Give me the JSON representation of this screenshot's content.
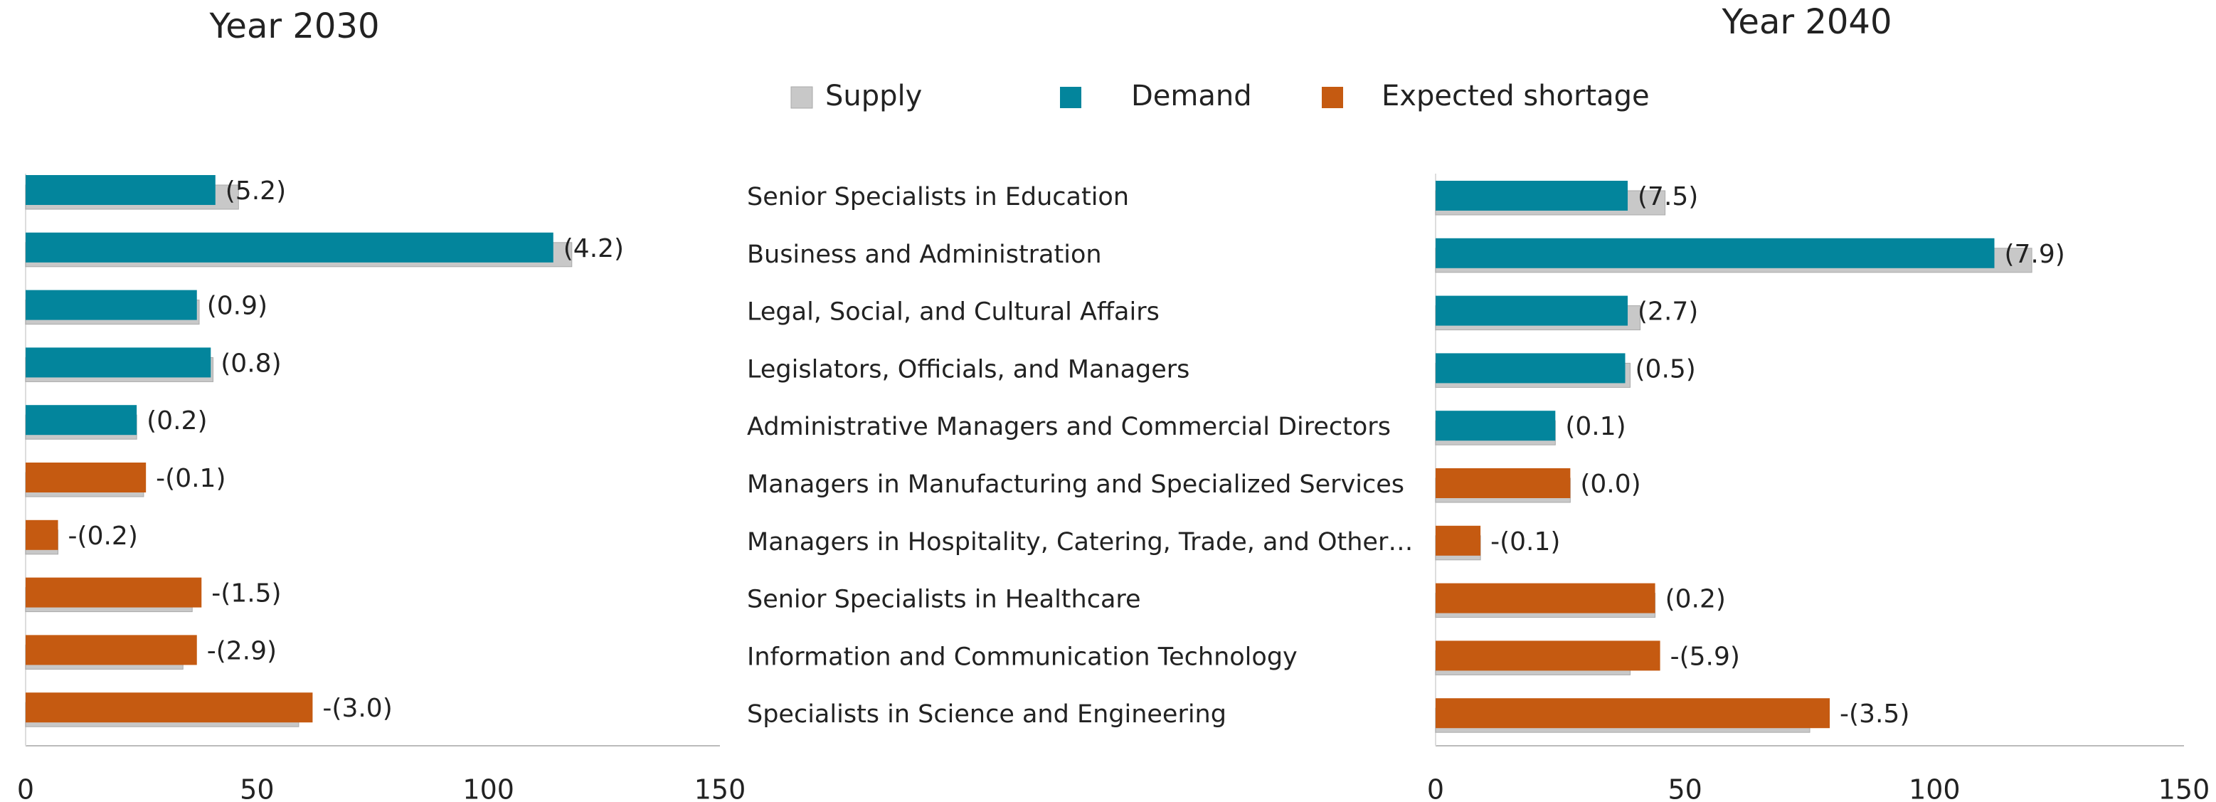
{
  "chart_data": [
    {
      "type": "bar",
      "orientation": "horizontal",
      "title": "Year 2030",
      "categories": [
        "Senior Specialists in Education",
        "Business and Administration",
        "Legal, Social, and Cultural Affairs",
        "Legislators, Officials, and Managers",
        "Administrative Managers and Commercial Directors",
        "Managers in Manufacturing and Specialized Services",
        "Managers in Hospitality, Catering, Trade, and Other…",
        "Senior Specialists in Healthcare",
        "Information and Communication Technology",
        "Specialists in Science and Engineering"
      ],
      "series": [
        {
          "name": "Supply",
          "color": "#c8c8c8",
          "values": [
            46,
            118,
            37.5,
            40.5,
            24,
            25.5,
            7,
            36,
            34,
            59
          ]
        },
        {
          "name": "Demand",
          "color": "#03859c",
          "colors": [
            "#03859c",
            "#03859c",
            "#03859c",
            "#03859c",
            "#03859c",
            "#c55a11",
            "#c55a11",
            "#c55a11",
            "#c55a11",
            "#c55a11"
          ],
          "values": [
            41,
            114,
            37,
            40,
            24,
            26,
            7,
            38,
            37,
            62
          ]
        },
        {
          "name": "Expected shortage",
          "color": "#c55a11",
          "values": [
            5.2,
            4.2,
            0.9,
            0.8,
            0.2,
            -0.1,
            -0.2,
            -1.5,
            -2.9,
            -3.0
          ],
          "value_labels": [
            "(5.2)",
            "(4.2)",
            "(0.9)",
            "(0.8)",
            "(0.2)",
            "-(0.1)",
            "-(0.2)",
            "-(1.5)",
            "-(2.9)",
            "-(3.0)"
          ]
        }
      ],
      "xlim": [
        0,
        150
      ],
      "xticks": [
        0,
        50,
        100,
        150
      ]
    },
    {
      "type": "bar",
      "orientation": "horizontal",
      "title": "Year 2040",
      "series": [
        {
          "color": "#c8c8c8",
          "values": [
            46,
            119.5,
            41,
            39,
            24,
            27,
            9,
            44,
            39,
            75
          ]
        },
        {
          "color": "#03859c",
          "colors": [
            "#03859c",
            "#03859c",
            "#03859c",
            "#03859c",
            "#03859c",
            "#c55a11",
            "#c55a11",
            "#c55a11",
            "#c55a11",
            "#c55a11"
          ],
          "values": [
            38.5,
            112,
            38.5,
            38,
            24,
            27,
            9,
            44,
            45,
            79
          ]
        },
        {
          "color": "#c55a11",
          "values": [
            7.5,
            7.9,
            2.7,
            0.5,
            0.1,
            0.0,
            -0.1,
            0.2,
            -5.9,
            -3.5
          ],
          "value_labels": [
            "(7.5)",
            "(7.9)",
            "(2.7)",
            "(0.5)",
            "(0.1)",
            "(0.0)",
            "-(0.1)",
            "(0.2)",
            "-(5.9)",
            "-(3.5)"
          ]
        }
      ],
      "xlim": [
        0,
        150
      ],
      "xticks": [
        0,
        50,
        100,
        150
      ]
    }
  ]
}
